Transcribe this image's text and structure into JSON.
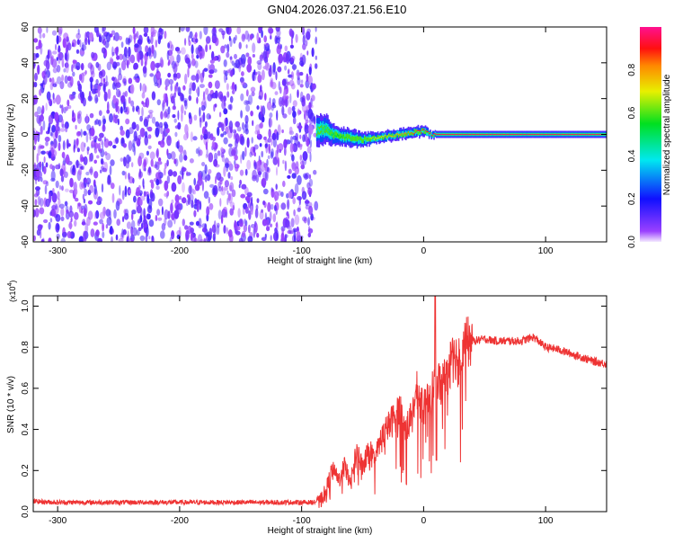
{
  "chart_data": [
    {
      "type": "heatmap",
      "title": "GN04.2026.037.21.56.E10",
      "xlabel": "Height of straight line (km)",
      "ylabel": "Frequency (Hz)",
      "xlim": [
        -320,
        150
      ],
      "ylim": [
        -60,
        60
      ],
      "xticks": [
        -300,
        -200,
        -100,
        0,
        100
      ],
      "yticks": [
        -60,
        -40,
        -20,
        0,
        20,
        40,
        60
      ],
      "colorbar": {
        "label": "Normalized spectral amplitude",
        "range": [
          0,
          1
        ],
        "ticks": [
          "0.0",
          "0.2",
          "0.4",
          "0.6",
          "0.8"
        ]
      },
      "noise_region_km": [
        -320,
        -88
      ],
      "ridge": {
        "height_km": [
          -88,
          -80,
          -75,
          -70,
          -60,
          -50,
          -40,
          -30,
          -20,
          -10,
          0,
          5,
          20,
          50,
          100,
          150
        ],
        "frequency_hz": [
          2,
          3,
          0,
          -1,
          -2,
          -3,
          -2,
          -1,
          0,
          1,
          2,
          0,
          0,
          0,
          0,
          0
        ],
        "spread_hz": [
          9,
          8,
          6,
          5,
          5,
          4,
          3,
          3,
          3,
          3,
          3,
          2,
          2,
          2,
          2,
          2
        ],
        "peak_amplitude": [
          0.4,
          0.45,
          0.5,
          0.55,
          0.6,
          0.6,
          0.7,
          0.75,
          0.8,
          0.85,
          0.9,
          0.95,
          0.95,
          0.95,
          0.95,
          0.95
        ]
      }
    },
    {
      "type": "line",
      "xlabel": "Height of straight line (km)",
      "ylabel": "SNR (10 * v/v)",
      "scale_label": "(x10",
      "scale_exp": "4",
      "scale_close": ")",
      "xlim": [
        -320,
        150
      ],
      "ylim": [
        0,
        1.05
      ],
      "xticks": [
        -300,
        -200,
        -100,
        0,
        100
      ],
      "yticks": [
        "0.0",
        "0.2",
        "0.4",
        "0.6",
        "0.8",
        "1.0"
      ],
      "color": "#ee3333",
      "x": [
        -320,
        -300,
        -250,
        -200,
        -150,
        -100,
        -90,
        -85,
        -80,
        -75,
        -70,
        -65,
        -60,
        -55,
        -50,
        -45,
        -40,
        -35,
        -30,
        -25,
        -20,
        -15,
        -10,
        -5,
        0,
        5,
        10,
        15,
        20,
        25,
        30,
        35,
        40,
        50,
        60,
        70,
        80,
        90,
        100,
        110,
        120,
        130,
        140,
        150
      ],
      "y": [
        0.05,
        0.045,
        0.045,
        0.045,
        0.045,
        0.045,
        0.045,
        0.05,
        0.1,
        0.2,
        0.15,
        0.22,
        0.15,
        0.28,
        0.22,
        0.3,
        0.25,
        0.35,
        0.4,
        0.45,
        0.5,
        0.4,
        0.45,
        0.6,
        0.5,
        0.55,
        0.65,
        0.62,
        0.7,
        0.75,
        0.78,
        0.82,
        0.83,
        0.84,
        0.83,
        0.83,
        0.83,
        0.85,
        0.8,
        0.79,
        0.77,
        0.75,
        0.73,
        0.72
      ]
    }
  ]
}
